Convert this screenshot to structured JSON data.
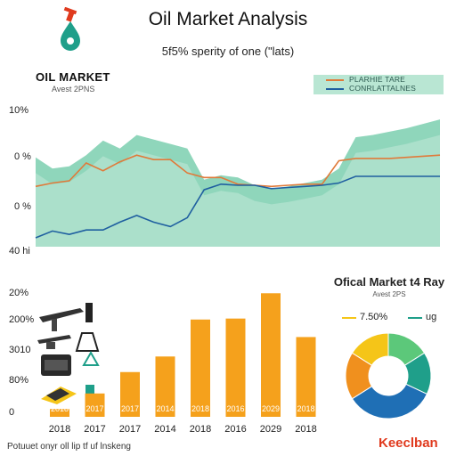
{
  "header": {
    "title": "Oil Market Analysis",
    "subtitle": "5f5% sperity of one (\"lats)"
  },
  "top_panel": {
    "title": "OIL MARKET",
    "subtitle": "Avest 2PNS",
    "legend": [
      {
        "label": "PLARHIE TARE",
        "color": "#e07a3a"
      },
      {
        "label": "CONRLATTALNES",
        "color": "#1f5fa0"
      }
    ],
    "y_labels": [
      "10%",
      "0 %",
      "0 %",
      "40 hi"
    ]
  },
  "bottom_panel": {
    "pie_title": "Ofical Market t4 Ray",
    "pie_subtitle": "Avest 2PS",
    "pie_legend": [
      {
        "label": "7.50%",
        "color": "#f5c518"
      },
      {
        "label": "ug",
        "color": "#1f9f8a"
      }
    ]
  },
  "footer": {
    "text": "Potuuet onyr oll lip tf uf lnskeng",
    "brand": "Keeclban"
  },
  "icons": [
    "oil-derrick-icon",
    "oil-pump-icon",
    "oil-tank-icon",
    "drilling-rig-icon"
  ],
  "colors": {
    "area": "#8fd6b9",
    "area_dark": "#5cc39e",
    "orange_line": "#e07a3a",
    "blue_line": "#1f5fa0",
    "bar": "#f5a11c",
    "accent": "#e03a1e"
  },
  "chart_data": [
    {
      "type": "area",
      "title": "OIL MARKET",
      "y_tick_labels": [
        "10%",
        "0 %",
        "0 %",
        "40 hi"
      ],
      "x": [
        1,
        2,
        3,
        4,
        5,
        6,
        7,
        8,
        9,
        10,
        11,
        12,
        13,
        14,
        15,
        16,
        17,
        18,
        19,
        20,
        21,
        22,
        23,
        24,
        25
      ],
      "series": [
        {
          "name": "",
          "kind": "area",
          "values": [
            80,
            70,
            72,
            82,
            95,
            88,
            100,
            96,
            92,
            88,
            60,
            64,
            62,
            55,
            52,
            54,
            57,
            60,
            70,
            98,
            100,
            103,
            106,
            110,
            114
          ]
        },
        {
          "name": "PLARHIE TARE",
          "kind": "line",
          "values": [
            54,
            57,
            59,
            75,
            68,
            76,
            82,
            78,
            78,
            66,
            62,
            62,
            56,
            55,
            54,
            55,
            56,
            56,
            77,
            79,
            79,
            79,
            80,
            81,
            82
          ]
        },
        {
          "name": "CONRLATTALNES",
          "kind": "line",
          "values": [
            8,
            14,
            11,
            15,
            15,
            22,
            28,
            22,
            18,
            26,
            51,
            56,
            55,
            55,
            52,
            53,
            54,
            55,
            57,
            63,
            63,
            63,
            63,
            63,
            63
          ]
        }
      ],
      "ylim": [
        0,
        130
      ]
    },
    {
      "type": "bar",
      "categories": [
        "2018",
        "2017",
        "2017",
        "2014",
        "2018",
        "2016",
        "2029",
        "2018"
      ],
      "values": [
        8,
        24,
        46,
        62,
        100,
        101,
        127,
        82
      ],
      "bar_labels": [
        "2018",
        "2017",
        "2017",
        "2014",
        "2018",
        "2016",
        "2029",
        "2018"
      ],
      "y_tick_labels": [
        "20%",
        "200%",
        "3010",
        "80%",
        "0"
      ],
      "ylim": [
        0,
        130
      ]
    },
    {
      "type": "pie",
      "style": "donut",
      "title": "Ofical Market t4 Ray",
      "values": [
        16,
        16,
        34,
        18,
        16
      ],
      "colors": [
        "#5cc87a",
        "#1f9f8a",
        "#1f6fb5",
        "#f0901e",
        "#f5c518"
      ]
    }
  ]
}
